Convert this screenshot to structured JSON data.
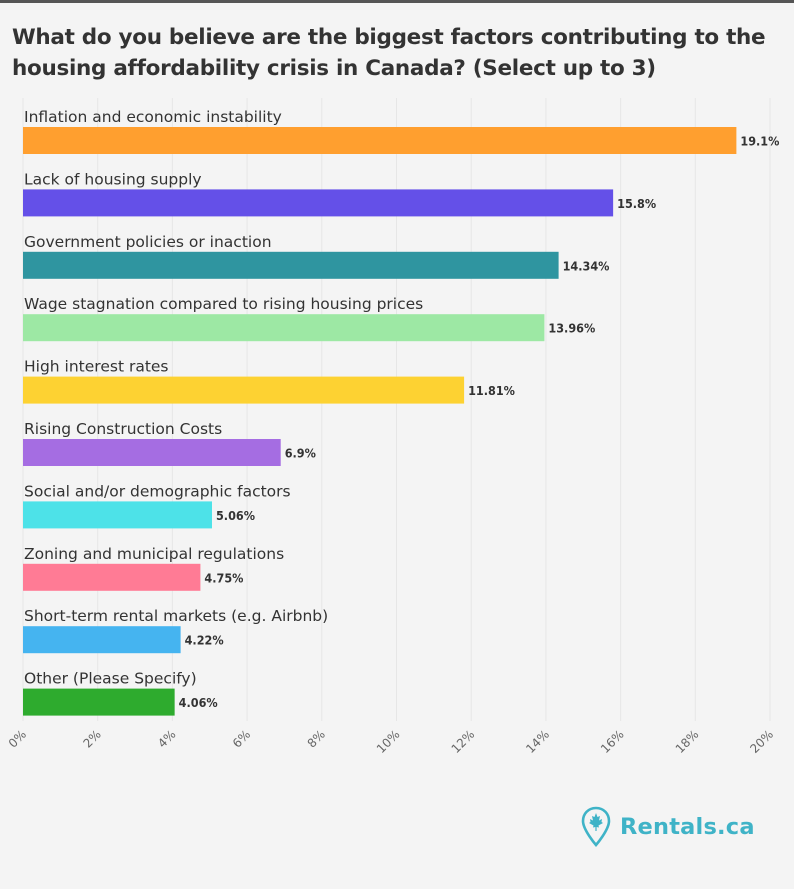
{
  "title": "What do you believe are the biggest factors contributing to the housing affordability crisis in Canada? (Select up to 3)",
  "brand": {
    "name": "Rentals.ca",
    "logo_icon": "maple-leaf-pin-icon",
    "color": "#3fb3c7"
  },
  "chart_data": {
    "type": "bar",
    "orientation": "horizontal",
    "title": "What do you believe are the biggest factors contributing to the housing affordability crisis in Canada? (Select up to 3)",
    "categories": [
      "Inflation and economic instability",
      "Lack of housing supply",
      "Government policies or inaction",
      "Wage stagnation compared to rising housing prices",
      "High interest rates",
      "Rising Construction Costs",
      "Social and/or demographic factors",
      "Zoning and municipal regulations",
      "Short-term rental markets (e.g. Airbnb)",
      "Other (Please Specify)"
    ],
    "values": [
      19.1,
      15.8,
      14.34,
      13.96,
      11.81,
      6.9,
      5.06,
      4.75,
      4.22,
      4.06
    ],
    "value_labels": [
      "19.1%",
      "15.8%",
      "14.34%",
      "13.96%",
      "11.81%",
      "6.9%",
      "5.06%",
      "4.75%",
      "4.22%",
      "4.06%"
    ],
    "colors": [
      "#ff9f2f",
      "#6450e8",
      "#2f95a0",
      "#9de8a4",
      "#fdd232",
      "#a56de2",
      "#4de2e8",
      "#ff7b95",
      "#45b4f0",
      "#2eab2e"
    ],
    "xlim": [
      0,
      20
    ],
    "xticks": [
      "0%",
      "2%",
      "4%",
      "6%",
      "8%",
      "10%",
      "12%",
      "14%",
      "16%",
      "18%",
      "20%"
    ],
    "grid": true,
    "xlabel": "",
    "ylabel": ""
  }
}
